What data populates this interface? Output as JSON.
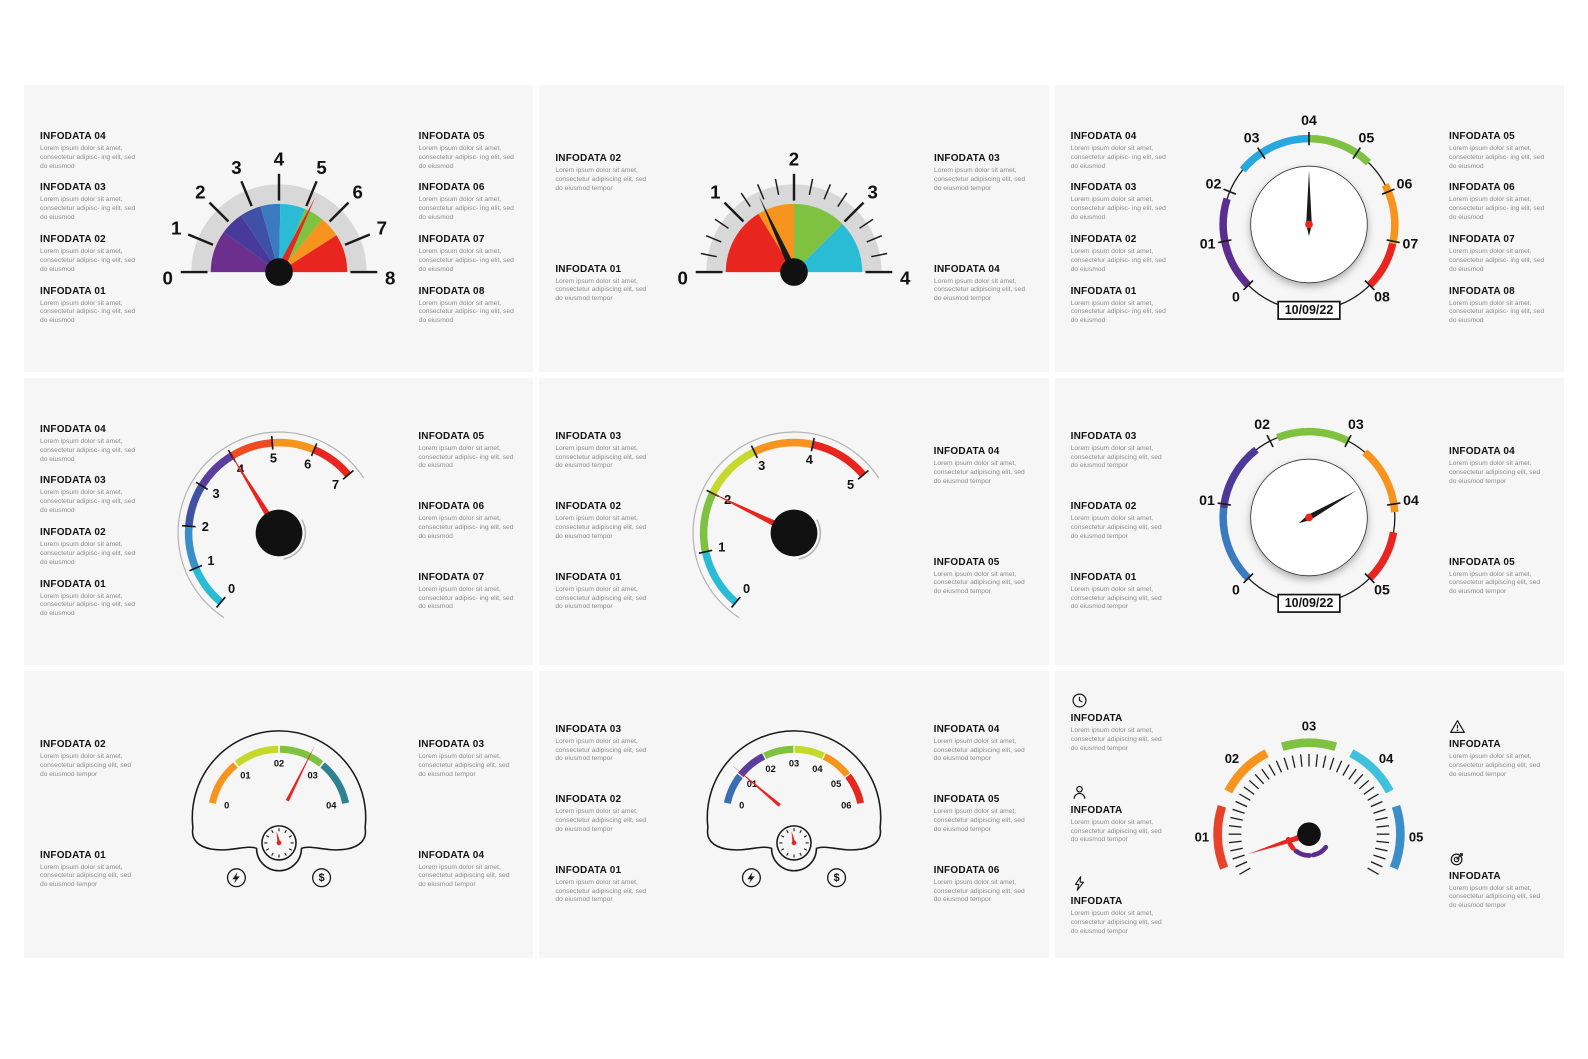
{
  "canvas": {
    "background": "#ffffff",
    "card_background": "#f6f6f6"
  },
  "shared": {
    "lorem_short": "Lorem ipsum dolor sit amet, consectetur adipisc- ing elit, sed do eiusmod",
    "lorem_long": "Lorem ipsum dolor sit amet, consectetur adipiscing elit, sed do eiusmod tempor"
  },
  "panels": [
    {
      "gauge": {
        "name": "gauge-speedometer-pie-8",
        "type": "pie",
        "min": 0,
        "max": 8,
        "band_color": "#d8d8d8",
        "minor_ticks": false,
        "tick_labels": [
          "0",
          "1",
          "2",
          "3",
          "4",
          "5",
          "6",
          "7",
          "8"
        ],
        "segments": [
          {
            "from": 0,
            "to": 1.6,
            "color": "#6d2f8e"
          },
          {
            "from": 1.6,
            "to": 2.5,
            "color": "#473a99"
          },
          {
            "from": 2.5,
            "to": 3.3,
            "color": "#3f51a5"
          },
          {
            "from": 3.3,
            "to": 4.05,
            "color": "#3a7bc0"
          },
          {
            "from": 4.05,
            "to": 5.0,
            "color": "#2abcd4"
          },
          {
            "from": 5.0,
            "to": 5.75,
            "color": "#7fc241"
          },
          {
            "from": 5.75,
            "to": 6.55,
            "color": "#f7941e"
          },
          {
            "from": 6.55,
            "to": 8,
            "color": "#e8251f"
          }
        ],
        "needle": {
          "value": 5.15,
          "color": "#e8251f"
        }
      },
      "left": [
        {
          "title": "INFODATA 04",
          "body": "short"
        },
        {
          "title": "INFODATA 03",
          "body": "short"
        },
        {
          "title": "INFODATA 02",
          "body": "short"
        },
        {
          "title": "INFODATA 01",
          "body": "short"
        }
      ],
      "right": [
        {
          "title": "INFODATA 05",
          "body": "short"
        },
        {
          "title": "INFODATA 06",
          "body": "short"
        },
        {
          "title": "INFODATA 07",
          "body": "short"
        },
        {
          "title": "INFODATA 08",
          "body": "short"
        }
      ]
    },
    {
      "gauge": {
        "name": "gauge-speedometer-pie-4",
        "type": "pie",
        "min": 0,
        "max": 4,
        "band_color": "#d8d8d8",
        "minor_ticks": true,
        "tick_labels": [
          "0",
          "1",
          "2",
          "3",
          "4"
        ],
        "segments": [
          {
            "from": 0,
            "to": 1.3,
            "color": "#e8251f"
          },
          {
            "from": 1.3,
            "to": 2,
            "color": "#f7941e"
          },
          {
            "from": 2,
            "to": 3,
            "color": "#7fc241"
          },
          {
            "from": 3,
            "to": 4,
            "color": "#2abcd4"
          }
        ],
        "needle": {
          "value": 1.45,
          "color": "#1a1a1a"
        }
      },
      "left": [
        {
          "title": "INFODATA 02",
          "body": "long"
        },
        {
          "title": "INFODATA 01",
          "body": "long"
        }
      ],
      "right": [
        {
          "title": "INFODATA 03",
          "body": "long"
        },
        {
          "title": "INFODATA 04",
          "body": "long"
        }
      ]
    },
    {
      "gauge": {
        "name": "gauge-dial-8",
        "type": "dial",
        "min": 0,
        "max": 8,
        "tick_labels": [
          "0",
          "01",
          "02",
          "03",
          "04",
          "05",
          "06",
          "07",
          "08"
        ],
        "segments": [
          {
            "from": 0,
            "to": 1.85,
            "color": "#5b2d8e"
          },
          {
            "from": 2.5,
            "to": 4.0,
            "color": "#29a8e0"
          },
          {
            "from": 4.0,
            "to": 5.3,
            "color": "#7fc241"
          },
          {
            "from": 5.85,
            "to": 7.05,
            "color": "#f7941e"
          },
          {
            "from": 7.05,
            "to": 8,
            "color": "#e8251f"
          }
        ],
        "needle": {
          "value": 4.0,
          "color": "#1a1a1a"
        },
        "center_dot": "#e8251f",
        "date": "10/09/22"
      },
      "left": [
        {
          "title": "INFODATA 04",
          "body": "short"
        },
        {
          "title": "INFODATA 03",
          "body": "short"
        },
        {
          "title": "INFODATA 02",
          "body": "short"
        },
        {
          "title": "INFODATA 01",
          "body": "short"
        }
      ],
      "right": [
        {
          "title": "INFODATA 05",
          "body": "short"
        },
        {
          "title": "INFODATA 06",
          "body": "short"
        },
        {
          "title": "INFODATA 07",
          "body": "short"
        },
        {
          "title": "INFODATA 08",
          "body": "short"
        }
      ]
    },
    {
      "gauge": {
        "name": "gauge-arc-7",
        "type": "arc",
        "min": 0,
        "max": 7,
        "tick_labels": [
          "0",
          "1",
          "2",
          "3",
          "4",
          "5",
          "6",
          "7"
        ],
        "segments": [
          {
            "from": 0,
            "to": 1,
            "color": "#2abcd4"
          },
          {
            "from": 1,
            "to": 2,
            "color": "#3a8fc8"
          },
          {
            "from": 2,
            "to": 3,
            "color": "#3f51a5"
          },
          {
            "from": 3,
            "to": 4,
            "color": "#5b3d9e"
          },
          {
            "from": 4,
            "to": 5,
            "color": "#ef4b23"
          },
          {
            "from": 5,
            "to": 6,
            "color": "#f7941e"
          },
          {
            "from": 6,
            "to": 7,
            "color": "#e8251f"
          }
        ],
        "needle": {
          "value": 4.0,
          "color": "#e8251f"
        }
      },
      "left": [
        {
          "title": "INFODATA 04",
          "body": "short"
        },
        {
          "title": "INFODATA 03",
          "body": "short"
        },
        {
          "title": "INFODATA 02",
          "body": "short"
        },
        {
          "title": "INFODATA 01",
          "body": "short"
        }
      ],
      "right": [
        {
          "title": "INFODATA 05",
          "body": "short"
        },
        {
          "title": "INFODATA 06",
          "body": "short"
        },
        {
          "title": "INFODATA 07",
          "body": "short"
        }
      ]
    },
    {
      "gauge": {
        "name": "gauge-arc-5",
        "type": "arc",
        "min": 0,
        "max": 5,
        "tick_labels": [
          "0",
          "1",
          "2",
          "3",
          "4",
          "5"
        ],
        "segments": [
          {
            "from": 0,
            "to": 1,
            "color": "#2abcd4"
          },
          {
            "from": 1,
            "to": 2,
            "color": "#7fc241"
          },
          {
            "from": 2,
            "to": 3,
            "color": "#c5d92d"
          },
          {
            "from": 3,
            "to": 4,
            "color": "#f7941e"
          },
          {
            "from": 4,
            "to": 5,
            "color": "#e8251f"
          }
        ],
        "needle": {
          "value": 2.0,
          "color": "#e8251f"
        }
      },
      "left": [
        {
          "title": "INFODATA 03",
          "body": "long"
        },
        {
          "title": "INFODATA 02",
          "body": "long"
        },
        {
          "title": "INFODATA 01",
          "body": "long"
        }
      ],
      "right": [
        {
          "title": "INFODATA 04",
          "body": "long"
        },
        {
          "title": "INFODATA 05",
          "body": "long"
        }
      ]
    },
    {
      "gauge": {
        "name": "gauge-dial-5",
        "type": "dial",
        "min": 0,
        "max": 5,
        "tick_labels": [
          "0",
          "01",
          "02",
          "03",
          "04",
          "05"
        ],
        "segments": [
          {
            "from": 0,
            "to": 0.95,
            "color": "#3a7bc0"
          },
          {
            "from": 0.95,
            "to": 1.8,
            "color": "#4b3a97"
          },
          {
            "from": 2.1,
            "to": 3.0,
            "color": "#7fc241"
          },
          {
            "from": 3.25,
            "to": 4.1,
            "color": "#f7941e"
          },
          {
            "from": 4.35,
            "to": 5,
            "color": "#e8251f"
          }
        ],
        "needle": {
          "value": 3.62,
          "color": "#1a1a1a"
        },
        "center_dot": "#e8251f",
        "date": "10/09/22"
      },
      "left": [
        {
          "title": "INFODATA 03",
          "body": "long"
        },
        {
          "title": "INFODATA 02",
          "body": "long"
        },
        {
          "title": "INFODATA 01",
          "body": "long"
        }
      ],
      "right": [
        {
          "title": "INFODATA 04",
          "body": "long"
        },
        {
          "title": "INFODATA 05",
          "body": "long"
        }
      ]
    },
    {
      "gauge": {
        "name": "gauge-dashboard-4",
        "type": "dashboard",
        "min": 0,
        "max": 4,
        "tick_labels": [
          "0",
          "01",
          "02",
          "03",
          "04"
        ],
        "segments": [
          {
            "from": 0,
            "to": 0.98,
            "color": "#f7941e"
          },
          {
            "from": 1.02,
            "to": 1.98,
            "color": "#c5d92d"
          },
          {
            "from": 2.02,
            "to": 2.98,
            "color": "#7fc241"
          },
          {
            "from": 3.02,
            "to": 4,
            "color": "#2f8291"
          }
        ],
        "needle": {
          "value": 2.68,
          "color": "#e8251f"
        },
        "icons": [
          {
            "name": "lightning-icon"
          },
          {
            "name": "dollar-icon",
            "glyph": "$"
          }
        ]
      },
      "left": [
        {
          "title": "INFODATA 02",
          "body": "long"
        },
        {
          "title": "INFODATA 01",
          "body": "long"
        }
      ],
      "right": [
        {
          "title": "INFODATA 03",
          "body": "long"
        },
        {
          "title": "INFODATA 04",
          "body": "long"
        }
      ]
    },
    {
      "gauge": {
        "name": "gauge-dashboard-6",
        "type": "dashboard",
        "min": 0,
        "max": 6,
        "tick_labels": [
          "0",
          "01",
          "02",
          "03",
          "04",
          "05",
          "06"
        ],
        "segments": [
          {
            "from": 0,
            "to": 0.98,
            "color": "#3a6db4"
          },
          {
            "from": 1.02,
            "to": 1.98,
            "color": "#5b3d9e"
          },
          {
            "from": 2.02,
            "to": 2.98,
            "color": "#7fc241"
          },
          {
            "from": 3.02,
            "to": 3.98,
            "color": "#c5d92d"
          },
          {
            "from": 4.02,
            "to": 4.98,
            "color": "#f7941e"
          },
          {
            "from": 5.02,
            "to": 6,
            "color": "#e8251f"
          }
        ],
        "needle": {
          "value": 1.08,
          "color": "#e8251f"
        },
        "icons": [
          {
            "name": "lightning-icon"
          },
          {
            "name": "dollar-icon",
            "glyph": "$"
          }
        ]
      },
      "left": [
        {
          "title": "INFODATA 03",
          "body": "long"
        },
        {
          "title": "INFODATA 02",
          "body": "long"
        },
        {
          "title": "INFODATA 01",
          "body": "long"
        }
      ],
      "right": [
        {
          "title": "INFODATA 04",
          "body": "long"
        },
        {
          "title": "INFODATA 05",
          "body": "long"
        },
        {
          "title": "INFODATA 06",
          "body": "long"
        }
      ]
    },
    {
      "gauge": {
        "name": "gauge-ticks-5",
        "type": "ticks",
        "min": 0,
        "max": 5,
        "tick_labels": [
          "01",
          "02",
          "03",
          "04",
          "05"
        ],
        "segments": [
          {
            "from": 0.07,
            "to": 0.93,
            "color": "#e8432a"
          },
          {
            "from": 1.15,
            "to": 1.9,
            "color": "#f7941e"
          },
          {
            "from": 2.13,
            "to": 2.87,
            "color": "#7fc241"
          },
          {
            "from": 3.1,
            "to": 3.85,
            "color": "#3fc0dd"
          },
          {
            "from": 4.07,
            "to": 4.93,
            "color": "#3a8fc8"
          }
        ],
        "needle": {
          "value": 0.15,
          "color": "#e8251f"
        },
        "decor": {
          "purple": "#5b2d8e",
          "red": "#e8251f"
        }
      },
      "left": [
        {
          "title": "INFODATA",
          "body": "long",
          "icon": "clock-icon"
        },
        {
          "title": "INFODATA",
          "body": "long",
          "icon": "person-icon"
        },
        {
          "title": "INFODATA",
          "body": "long",
          "icon": "lightning-icon"
        }
      ],
      "right": [
        {
          "title": "INFODATA",
          "body": "long",
          "icon": "warning-icon"
        },
        {
          "title": "INFODATA",
          "body": "long",
          "icon": "target-icon"
        }
      ]
    }
  ]
}
